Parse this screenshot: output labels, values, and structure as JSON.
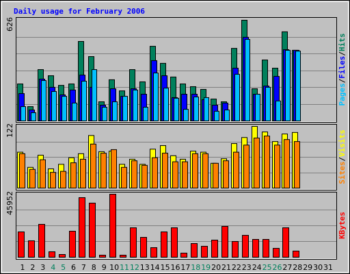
{
  "title": "Daily usage for February 2006",
  "legend_separator": "/",
  "chart_data": [
    {
      "type": "bar",
      "ylim": [
        0,
        626
      ],
      "yticks": [
        626
      ],
      "series": [
        {
          "name": "Hits",
          "color": "#00805C",
          "values": [
            230,
            89,
            319,
            281,
            221,
            230,
            494,
            400,
            119,
            256,
            187,
            319,
            243,
            464,
            358,
            273,
            230,
            213,
            196,
            136,
            119,
            451,
            626,
            200,
            379,
            328,
            554,
            439,
            null,
            null,
            null
          ]
        },
        {
          "name": "Files",
          "color": "#0000FF",
          "values": [
            170,
            68,
            260,
            209,
            162,
            192,
            285,
            209,
            98,
            200,
            153,
            200,
            166,
            375,
            281,
            145,
            166,
            166,
            132,
            98,
            111,
            328,
            520,
            166,
            217,
            277,
            443,
            439,
            null,
            null,
            null
          ]
        },
        {
          "name": "Pages",
          "color": "#00C0FF",
          "values": [
            89,
            51,
            251,
            183,
            153,
            111,
            247,
            319,
            85,
            119,
            153,
            192,
            85,
            298,
            204,
            141,
            72,
            149,
            145,
            60,
            68,
            290,
            507,
            166,
            209,
            124,
            439,
            434,
            null,
            null,
            null
          ]
        }
      ]
    },
    {
      "type": "bar",
      "ylim": [
        0,
        122
      ],
      "yticks": [
        122
      ],
      "series": [
        {
          "name": "Visits",
          "color": "#FFFF00",
          "values": [
            71,
            41,
            65,
            38,
            47,
            60,
            68,
            104,
            72,
            73,
            47,
            57,
            47,
            77,
            84,
            64,
            57,
            73,
            71,
            49,
            58,
            88,
            100,
            122,
            111,
            92,
            107,
            110,
            null,
            null,
            null
          ]
        },
        {
          "name": "Sites",
          "color": "#FF8000",
          "values": [
            68,
            37,
            56,
            31,
            33,
            50,
            57,
            87,
            69,
            76,
            41,
            54,
            45,
            60,
            69,
            52,
            52,
            68,
            68,
            49,
            54,
            71,
            85,
            99,
            103,
            85,
            96,
            92,
            null,
            null,
            null
          ]
        }
      ]
    },
    {
      "type": "bar",
      "ylim": [
        0,
        45952
      ],
      "yticks": [
        45952
      ],
      "categories": [
        "1",
        "2",
        "3",
        "4",
        "5",
        "6",
        "7",
        "8",
        "9",
        "10",
        "11",
        "12",
        "13",
        "14",
        "15",
        "16",
        "17",
        "18",
        "19",
        "20",
        "21",
        "22",
        "23",
        "24",
        "25",
        "26",
        "27",
        "28",
        "29",
        "30",
        "31"
      ],
      "weekend_categories": [
        "4",
        "5",
        "11",
        "12",
        "18",
        "19",
        "25",
        "26"
      ],
      "weekend_label_color": "#00805C",
      "series": [
        {
          "name": "KBytes",
          "color": "#FF0000",
          "values": [
            18480,
            11990,
            23980,
            4000,
            2000,
            18980,
            43460,
            39460,
            1500,
            45952,
            1500,
            21480,
            14490,
            6990,
            18480,
            21480,
            3000,
            9990,
            7990,
            12490,
            22480,
            11490,
            15980,
            12990,
            12990,
            6490,
            21480,
            4500,
            null,
            null,
            null
          ]
        }
      ]
    }
  ]
}
